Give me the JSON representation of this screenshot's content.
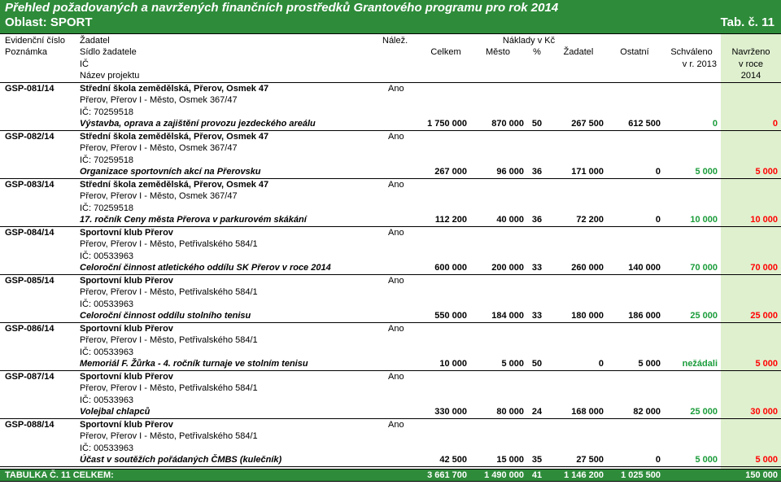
{
  "header": {
    "title": "Přehled požadovaných a navržených finančních prostředků Grantového programu pro rok 2014",
    "subtitle": "Oblast: SPORT",
    "table_no": "Tab. č. 11"
  },
  "columns": {
    "evidencni_cislo": "Evidenční číslo",
    "poznamka": "Poznámka",
    "zadatel": "Žadatel",
    "sidlo": "Sídlo žadatele",
    "ic": "IČ",
    "nazev": "Název projektu",
    "nalez": "Nálež.",
    "naklady": "Náklady v Kč",
    "celkem": "Celkem",
    "mesto": "Město",
    "pct": "%",
    "zadatel_amt": "Žadatel",
    "ostatni": "Ostatní",
    "schvaleno": "Schváleno",
    "schvaleno2": "v r. 2013",
    "navrzeno": "Navrženo",
    "navrzeno2": "v roce",
    "navrzeno3": "2014"
  },
  "rows": [
    {
      "id": "GSP-081/14",
      "applicant": "Střední škola zemědělská, Přerov, Osmek 47",
      "address": "Přerov, Přerov I - Město, Osmek 367/47",
      "ic": "IČ: 70259518",
      "project": "Výstavba, oprava a zajištění provozu jezdeckého areálu",
      "nalez": "Ano",
      "celkem": "1 750 000",
      "mesto": "870 000",
      "pct": "50",
      "zadatel": "267 500",
      "ostatni": "612 500",
      "schvaleno": "0",
      "navrzeno": "0"
    },
    {
      "id": "GSP-082/14",
      "applicant": "Střední škola zemědělská, Přerov, Osmek 47",
      "address": "Přerov, Přerov I - Město, Osmek 367/47",
      "ic": "IČ: 70259518",
      "project": "Organizace sportovních akcí na Přerovsku",
      "nalez": "Ano",
      "celkem": "267 000",
      "mesto": "96 000",
      "pct": "36",
      "zadatel": "171 000",
      "ostatni": "0",
      "schvaleno": "5 000",
      "navrzeno": "5 000"
    },
    {
      "id": "GSP-083/14",
      "applicant": "Střední škola zemědělská, Přerov, Osmek 47",
      "address": "Přerov, Přerov I - Město, Osmek 367/47",
      "ic": "IČ: 70259518",
      "project": "17. ročník Ceny města Přerova v parkurovém skákání",
      "nalez": "Ano",
      "celkem": "112 200",
      "mesto": "40 000",
      "pct": "36",
      "zadatel": "72 200",
      "ostatni": "0",
      "schvaleno": "10 000",
      "navrzeno": "10 000"
    },
    {
      "id": "GSP-084/14",
      "applicant": "Sportovní klub Přerov",
      "address": "Přerov, Přerov I - Město, Petřivalského 584/1",
      "ic": "IČ: 00533963",
      "project": "Celoroční činnost atletického oddílu SK Přerov v roce 2014",
      "nalez": "Ano",
      "celkem": "600 000",
      "mesto": "200 000",
      "pct": "33",
      "zadatel": "260 000",
      "ostatni": "140 000",
      "schvaleno": "70 000",
      "navrzeno": "70 000"
    },
    {
      "id": "GSP-085/14",
      "applicant": "Sportovní klub Přerov",
      "address": "Přerov, Přerov I - Město, Petřivalského 584/1",
      "ic": "IČ: 00533963",
      "project": "Celoroční činnost oddílu stolního tenisu",
      "nalez": "Ano",
      "celkem": "550 000",
      "mesto": "184 000",
      "pct": "33",
      "zadatel": "180 000",
      "ostatni": "186 000",
      "schvaleno": "25 000",
      "navrzeno": "25 000"
    },
    {
      "id": "GSP-086/14",
      "applicant": "Sportovní klub Přerov",
      "address": "Přerov, Přerov I - Město, Petřivalského 584/1",
      "ic": "IČ: 00533963",
      "project": "Memoriál F. Žůrka - 4. ročník turnaje ve stolním tenisu",
      "nalez": "Ano",
      "celkem": "10 000",
      "mesto": "5 000",
      "pct": "50",
      "zadatel": "0",
      "ostatni": "5 000",
      "schvaleno": "nežádali",
      "navrzeno": "5 000"
    },
    {
      "id": "GSP-087/14",
      "applicant": "Sportovní klub Přerov",
      "address": "Přerov, Přerov I - Město, Petřivalského 584/1",
      "ic": "IČ: 00533963",
      "project": "Volejbal chlapců",
      "nalez": "Ano",
      "celkem": "330 000",
      "mesto": "80 000",
      "pct": "24",
      "zadatel": "168 000",
      "ostatni": "82 000",
      "schvaleno": "25 000",
      "navrzeno": "30 000"
    },
    {
      "id": "GSP-088/14",
      "applicant": "Sportovní klub Přerov",
      "address": "Přerov, Přerov I - Město, Petřivalského 584/1",
      "ic": "IČ: 00533963",
      "project": "Účast v soutěžích pořádaných ČMBS (kulečník)",
      "nalez": "Ano",
      "celkem": "42 500",
      "mesto": "15 000",
      "pct": "35",
      "zadatel": "27 500",
      "ostatni": "0",
      "schvaleno": "5 000",
      "navrzeno": "5 000"
    }
  ],
  "total": {
    "label": "TABULKA Č. 11 CELKEM:",
    "celkem": "3 661 700",
    "mesto": "1 490 000",
    "pct": "41",
    "zadatel": "1 146 200",
    "ostatni": "1 025 500",
    "navrzeno": "150 000"
  },
  "colors": {
    "banner": "#2e8b3a",
    "navrzeno_fill": "#dff0cf",
    "approved_text": "#1a9c3a",
    "highlight": "#ff0000"
  }
}
